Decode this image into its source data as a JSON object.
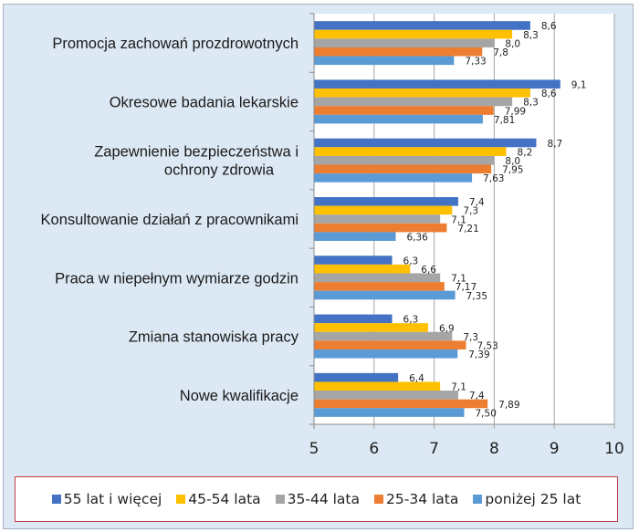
{
  "chart_data": {
    "type": "bar",
    "orientation": "horizontal",
    "title": "",
    "xlabel": "",
    "ylabel": "",
    "xlim": [
      5,
      10
    ],
    "x_ticks": [
      "5",
      "6",
      "7",
      "8",
      "9",
      "10"
    ],
    "grid": true,
    "legend_position": "bottom",
    "categories": [
      [
        "Promocja zachowań prozdrowotnych"
      ],
      [
        "Okresowe badania lekarskie"
      ],
      [
        "Zapewnienie bezpieczeństwa i",
        "ochrony zdrowia"
      ],
      [
        "Konsultowanie działań z pracownikami"
      ],
      [
        "Praca w niepełnym wymiarze godzin"
      ],
      [
        "Zmiana stanowiska pracy"
      ],
      [
        "Nowe kwalifikacje"
      ]
    ],
    "series": [
      {
        "name": "55 lat i więcej",
        "color": "#4472c4",
        "values": [
          8.6,
          9.1,
          8.7,
          7.4,
          6.3,
          6.3,
          6.4
        ],
        "labels": [
          "8,6",
          "9,1",
          "8,7",
          "7,4",
          "6,3",
          "6,3",
          "6,4"
        ]
      },
      {
        "name": "45-54 lata",
        "color": "#ffc000",
        "values": [
          8.3,
          8.6,
          8.2,
          7.3,
          6.6,
          6.9,
          7.1
        ],
        "labels": [
          "8,3",
          "8,6",
          "8,2",
          "7,3",
          "6,6",
          "6,9",
          "7,1"
        ]
      },
      {
        "name": "35-44 lata",
        "color": "#a5a5a5",
        "values": [
          8.0,
          8.3,
          8.0,
          7.1,
          7.1,
          7.3,
          7.4
        ],
        "labels": [
          "8,0",
          "8,3",
          "8,0",
          "7,1",
          "7,1",
          "7,3",
          "7,4"
        ]
      },
      {
        "name": "25-34 lata",
        "color": "#ed7d31",
        "values": [
          7.8,
          7.99,
          7.95,
          7.21,
          7.17,
          7.53,
          7.89
        ],
        "labels": [
          "7,8",
          "7,99",
          "7,95",
          "7,21",
          "7,17",
          "7,53",
          "7,89"
        ]
      },
      {
        "name": "poniżej 25 lat",
        "color": "#5b9bd5",
        "values": [
          7.33,
          7.81,
          7.63,
          6.36,
          7.35,
          7.39,
          7.5
        ],
        "labels": [
          "7,33",
          "7,81",
          "7,63",
          "6,36",
          "7,35",
          "7,39",
          "7,50"
        ]
      }
    ]
  }
}
